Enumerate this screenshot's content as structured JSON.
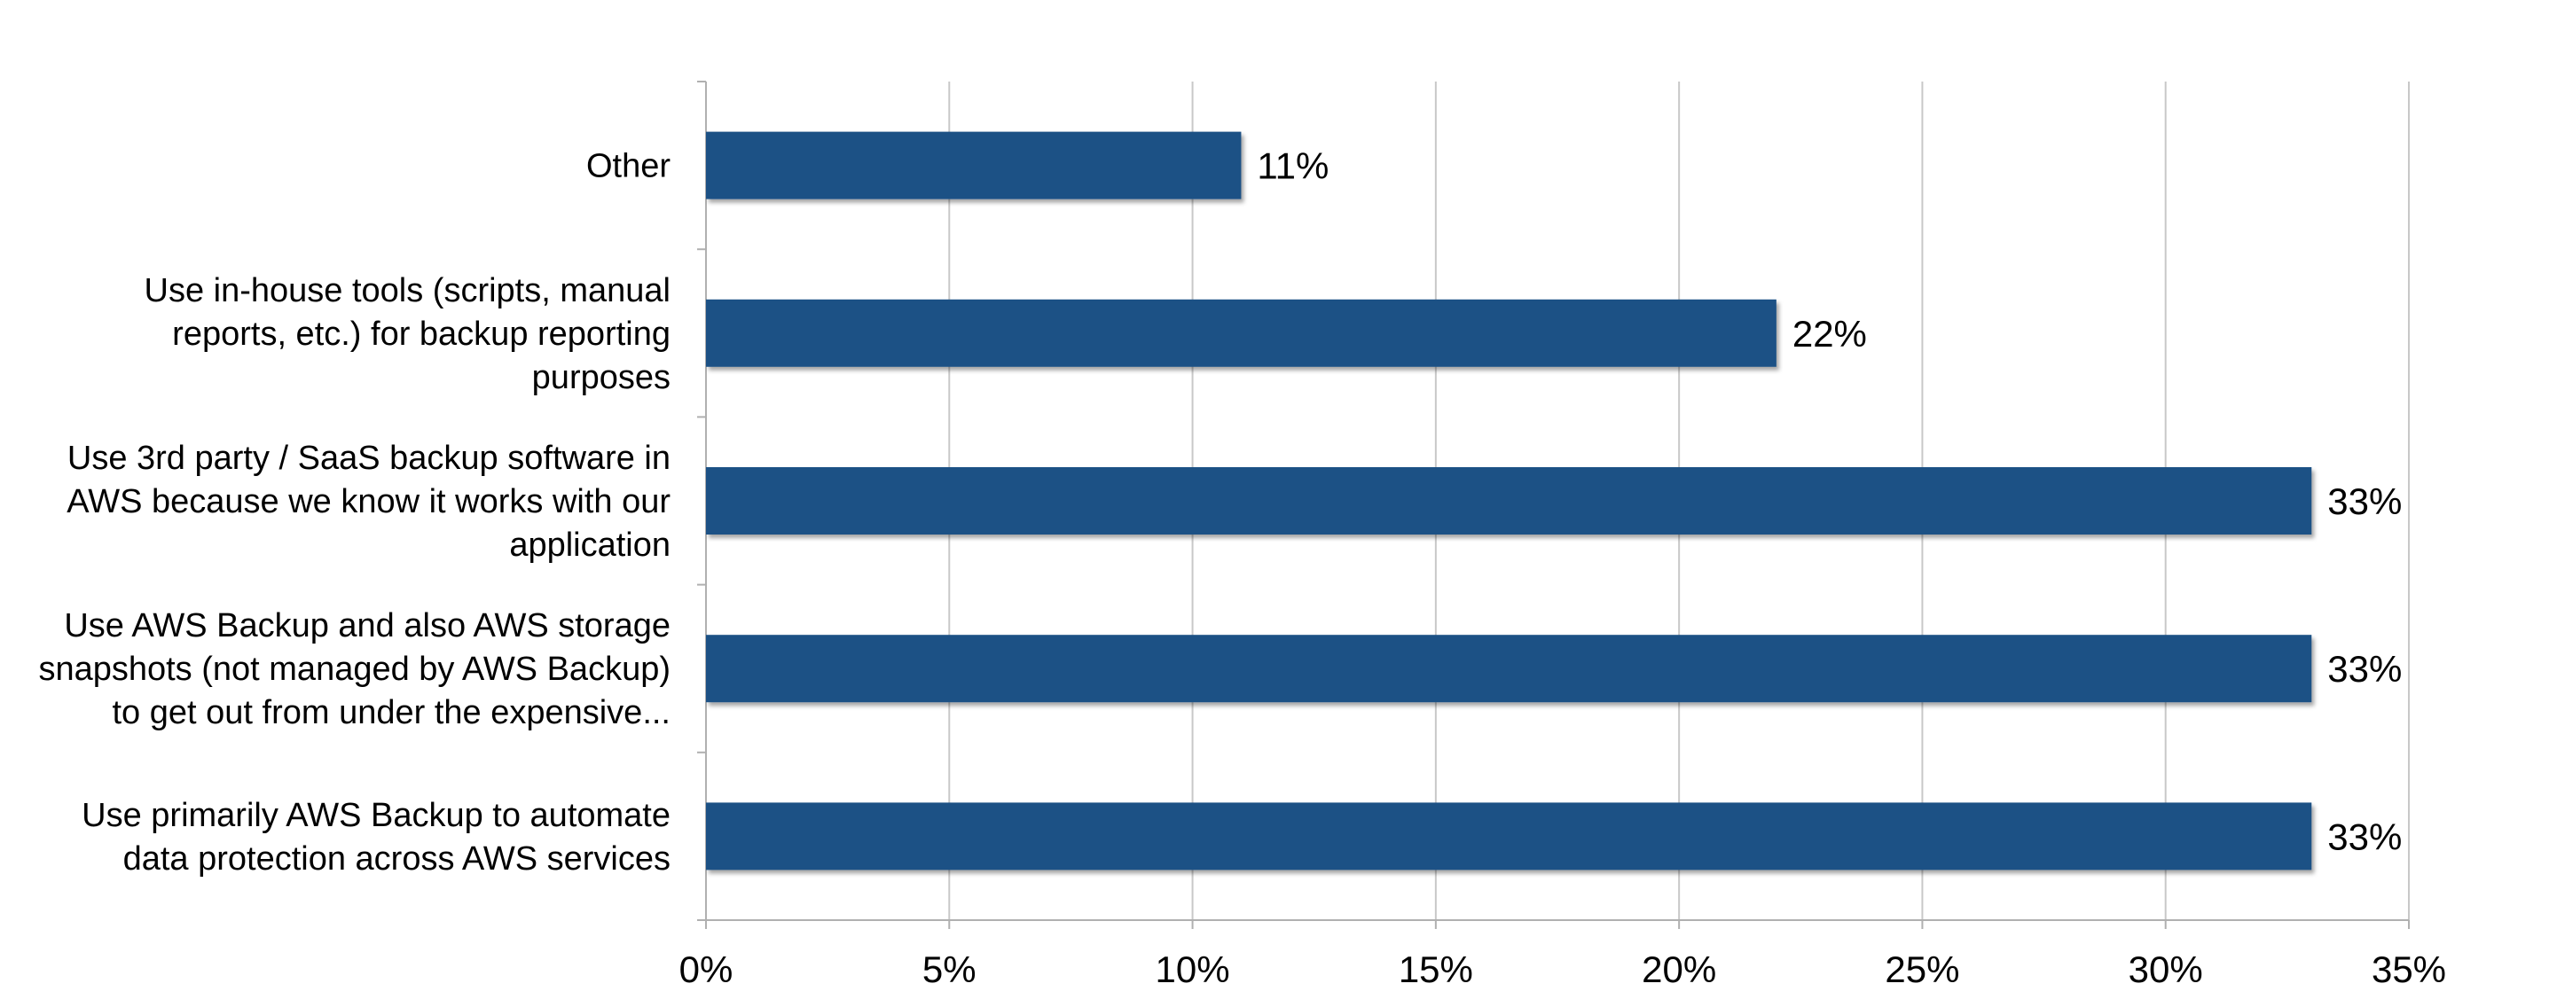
{
  "chart_data": {
    "type": "bar",
    "orientation": "horizontal",
    "categories": [
      [
        "Other"
      ],
      [
        "Use in-house tools (scripts, manual",
        "reports, etc.) for backup reporting",
        "purposes"
      ],
      [
        "Use 3rd party / SaaS backup software in",
        "AWS because we know it works with our",
        "application"
      ],
      [
        "Use AWS Backup and also AWS storage",
        "snapshots (not managed by AWS Backup)",
        "to get out from under the expensive..."
      ],
      [
        "Use primarily AWS Backup to automate",
        "data protection across AWS services"
      ]
    ],
    "values": [
      11,
      22,
      33,
      33,
      33
    ],
    "data_labels": [
      "11%",
      "22%",
      "33%",
      "33%",
      "33%"
    ],
    "xlim": [
      0,
      35
    ],
    "x_ticks": [
      0,
      5,
      10,
      15,
      20,
      25,
      30,
      35
    ],
    "x_tick_labels": [
      "0%",
      "5%",
      "10%",
      "15%",
      "20%",
      "25%",
      "30%",
      "35%"
    ],
    "grid": "vertical",
    "legend": "none",
    "colors": {
      "bar": "#1f5185",
      "grid": "#c8c8c8",
      "axis": "#b0b0b0"
    }
  }
}
